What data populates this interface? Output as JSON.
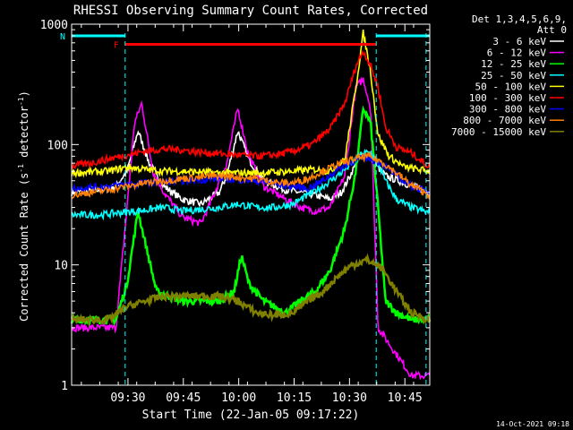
{
  "chart_data": {
    "type": "line",
    "title": "RHESSI Observing Summary Count Rates, Corrected",
    "xlabel": "Start Time (22-Jan-05 09:17:22)",
    "ylabel_main": "Corrected Count Rate (s",
    "ylabel_sup1": "-1",
    "ylabel_mid": " detector",
    "ylabel_sup2": "-1",
    "ylabel_end": ")",
    "y_scale": "log",
    "ylim": [
      1,
      1000
    ],
    "xlim_minutes": [
      0,
      97
    ],
    "x_start_minute_of_day": 557.37,
    "x_ticks": [
      {
        "minute": 572.63,
        "label": "09:30"
      },
      {
        "minute": 587.63,
        "label": "09:45"
      },
      {
        "minute": 602.63,
        "label": "10:00"
      },
      {
        "minute": 617.63,
        "label": "10:15"
      },
      {
        "minute": 632.63,
        "label": "10:30"
      },
      {
        "minute": 647.63,
        "label": "10:45"
      }
    ],
    "y_ticks": [
      {
        "value": 1,
        "label": "1"
      },
      {
        "value": 10,
        "label": "10"
      },
      {
        "value": 100,
        "label": "100"
      },
      {
        "value": 1000,
        "label": "1000"
      }
    ],
    "legend_header": [
      "Det 1,3,4,5,6,9,",
      "Att 0"
    ],
    "legend_position": "right",
    "series": [
      {
        "name": "3 - 6 keV",
        "color": "#ffffff",
        "points": [
          [
            0,
            40
          ],
          [
            8,
            42
          ],
          [
            12,
            45
          ],
          [
            15,
            60
          ],
          [
            18,
            130
          ],
          [
            21,
            70
          ],
          [
            25,
            45
          ],
          [
            30,
            35
          ],
          [
            35,
            32
          ],
          [
            40,
            40
          ],
          [
            42,
            55
          ],
          [
            45,
            130
          ],
          [
            48,
            75
          ],
          [
            52,
            50
          ],
          [
            58,
            42
          ],
          [
            62,
            40
          ],
          [
            66,
            38
          ],
          [
            70,
            35
          ],
          [
            73,
            40
          ],
          [
            75,
            52
          ],
          [
            78,
            80
          ],
          [
            80,
            82
          ],
          [
            82,
            70
          ],
          [
            85,
            55
          ],
          [
            90,
            48
          ],
          [
            97,
            40
          ]
        ]
      },
      {
        "name": "6 - 12 keV",
        "color": "#ff00ff",
        "points": [
          [
            0,
            3
          ],
          [
            12,
            3
          ],
          [
            15,
            30
          ],
          [
            17,
            150
          ],
          [
            19,
            220
          ],
          [
            22,
            60
          ],
          [
            25,
            40
          ],
          [
            30,
            25
          ],
          [
            35,
            22
          ],
          [
            38,
            35
          ],
          [
            42,
            70
          ],
          [
            45,
            200
          ],
          [
            48,
            80
          ],
          [
            52,
            45
          ],
          [
            58,
            35
          ],
          [
            62,
            30
          ],
          [
            66,
            28
          ],
          [
            70,
            30
          ],
          [
            74,
            55
          ],
          [
            77,
            300
          ],
          [
            79,
            350
          ],
          [
            81,
            200
          ],
          [
            83,
            3
          ],
          [
            88,
            1.8
          ],
          [
            92,
            1.2
          ],
          [
            97,
            1.2
          ]
        ]
      },
      {
        "name": "12 - 25 keV",
        "color": "#00ff00",
        "points": [
          [
            0,
            3.5
          ],
          [
            12,
            3.5
          ],
          [
            15,
            7
          ],
          [
            18,
            28
          ],
          [
            20,
            15
          ],
          [
            23,
            6
          ],
          [
            30,
            5
          ],
          [
            40,
            5
          ],
          [
            44,
            6
          ],
          [
            46,
            12
          ],
          [
            48,
            7
          ],
          [
            52,
            5
          ],
          [
            58,
            4
          ],
          [
            62,
            5
          ],
          [
            66,
            6
          ],
          [
            70,
            9
          ],
          [
            74,
            20
          ],
          [
            77,
            60
          ],
          [
            79,
            200
          ],
          [
            81,
            150
          ],
          [
            83,
            30
          ],
          [
            85,
            5
          ],
          [
            88,
            4
          ],
          [
            92,
            3.5
          ],
          [
            97,
            3.5
          ]
        ]
      },
      {
        "name": "25 - 50 keV",
        "color": "#00ffff",
        "points": [
          [
            0,
            26
          ],
          [
            8,
            26
          ],
          [
            12,
            27
          ],
          [
            18,
            28
          ],
          [
            25,
            30
          ],
          [
            30,
            28
          ],
          [
            35,
            29
          ],
          [
            40,
            30
          ],
          [
            45,
            32
          ],
          [
            50,
            30
          ],
          [
            55,
            30
          ],
          [
            60,
            32
          ],
          [
            64,
            38
          ],
          [
            68,
            45
          ],
          [
            72,
            55
          ],
          [
            76,
            70
          ],
          [
            79,
            85
          ],
          [
            81,
            85
          ],
          [
            83,
            70
          ],
          [
            85,
            50
          ],
          [
            88,
            35
          ],
          [
            92,
            30
          ],
          [
            97,
            27
          ]
        ]
      },
      {
        "name": "50 - 100 keV",
        "color": "#ffff00",
        "points": [
          [
            0,
            58
          ],
          [
            10,
            60
          ],
          [
            15,
            65
          ],
          [
            20,
            62
          ],
          [
            25,
            60
          ],
          [
            30,
            60
          ],
          [
            40,
            58
          ],
          [
            50,
            58
          ],
          [
            60,
            60
          ],
          [
            66,
            62
          ],
          [
            70,
            60
          ],
          [
            74,
            75
          ],
          [
            77,
            300
          ],
          [
            79,
            850
          ],
          [
            81,
            400
          ],
          [
            83,
            120
          ],
          [
            86,
            80
          ],
          [
            90,
            65
          ],
          [
            97,
            60
          ]
        ]
      },
      {
        "name": "100 - 300 keV",
        "color": "#ff0000",
        "points": [
          [
            0,
            66
          ],
          [
            5,
            70
          ],
          [
            10,
            76
          ],
          [
            15,
            82
          ],
          [
            20,
            88
          ],
          [
            25,
            92
          ],
          [
            30,
            90
          ],
          [
            35,
            86
          ],
          [
            40,
            84
          ],
          [
            45,
            82
          ],
          [
            50,
            80
          ],
          [
            55,
            82
          ],
          [
            60,
            88
          ],
          [
            65,
            100
          ],
          [
            70,
            135
          ],
          [
            74,
            220
          ],
          [
            77,
            450
          ],
          [
            79,
            600
          ],
          [
            81,
            450
          ],
          [
            83,
            300
          ],
          [
            85,
            140
          ],
          [
            88,
            95
          ],
          [
            92,
            85
          ],
          [
            97,
            65
          ]
        ]
      },
      {
        "name": "300 - 800 keV",
        "color": "#0000ff",
        "points": [
          [
            0,
            43
          ],
          [
            10,
            45
          ],
          [
            20,
            48
          ],
          [
            30,
            50
          ],
          [
            40,
            52
          ],
          [
            50,
            50
          ],
          [
            55,
            47
          ],
          [
            60,
            45
          ],
          [
            64,
            43
          ],
          [
            68,
            50
          ],
          [
            72,
            62
          ],
          [
            76,
            72
          ],
          [
            80,
            78
          ],
          [
            84,
            70
          ],
          [
            88,
            55
          ],
          [
            92,
            45
          ],
          [
            97,
            40
          ]
        ]
      },
      {
        "name": "800 - 7000 keV",
        "color": "#ff8000",
        "points": [
          [
            0,
            38
          ],
          [
            10,
            42
          ],
          [
            20,
            48
          ],
          [
            30,
            52
          ],
          [
            40,
            55
          ],
          [
            50,
            52
          ],
          [
            56,
            48
          ],
          [
            60,
            48
          ],
          [
            64,
            52
          ],
          [
            68,
            60
          ],
          [
            72,
            68
          ],
          [
            76,
            75
          ],
          [
            80,
            80
          ],
          [
            84,
            72
          ],
          [
            88,
            58
          ],
          [
            92,
            46
          ],
          [
            97,
            38
          ]
        ]
      },
      {
        "name": "7000 - 15000 keV",
        "color": "#808000",
        "points": [
          [
            0,
            3.5
          ],
          [
            10,
            3.5
          ],
          [
            15,
            4.5
          ],
          [
            20,
            5
          ],
          [
            25,
            5.5
          ],
          [
            30,
            5.5
          ],
          [
            40,
            5.5
          ],
          [
            45,
            5
          ],
          [
            50,
            4
          ],
          [
            55,
            3.8
          ],
          [
            60,
            4
          ],
          [
            64,
            5
          ],
          [
            68,
            6
          ],
          [
            72,
            8
          ],
          [
            76,
            10
          ],
          [
            80,
            11
          ],
          [
            84,
            9.5
          ],
          [
            88,
            6
          ],
          [
            92,
            4
          ],
          [
            97,
            3.5
          ]
        ]
      }
    ],
    "annotation_bars": [
      {
        "label": "F",
        "color": "#ff0000",
        "value": 680,
        "x_range": [
          14.5,
          82.5
        ]
      },
      {
        "label": "N",
        "color": "#00ffff",
        "value": 800,
        "x_range": [
          0,
          14.5
        ]
      },
      {
        "label": "",
        "color": "#00ffff",
        "value": 800,
        "x_range": [
          82.5,
          97
        ]
      }
    ],
    "dashed_markers": [
      {
        "color": "#00ffff",
        "minute": 14.5
      },
      {
        "color": "#00ffff",
        "minute": 82.5
      },
      {
        "color": "#00ffff",
        "minute": 96
      }
    ]
  },
  "footer_timestamp": "14-Oct-2021 09:18"
}
